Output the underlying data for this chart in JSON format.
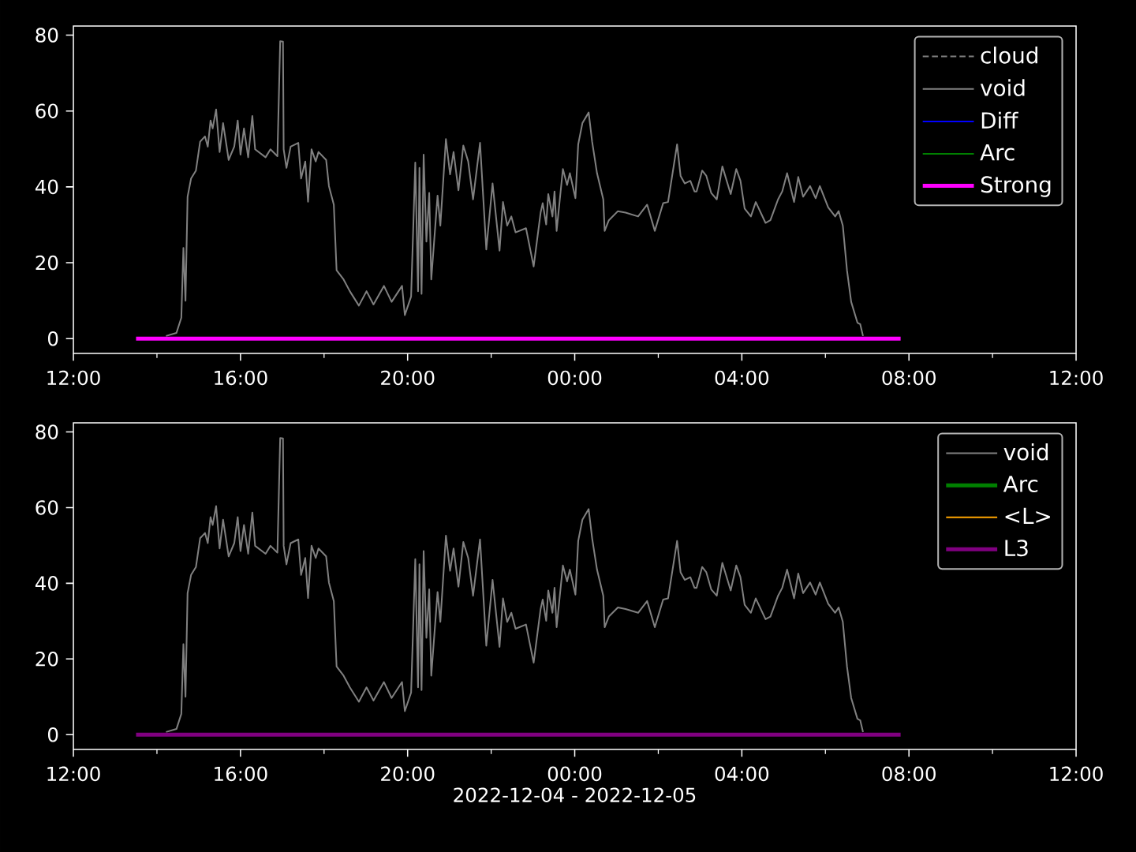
{
  "chart_data": [
    {
      "type": "line",
      "xlim": [
        "2022-12-04T12:00",
        "2022-12-05T12:00"
      ],
      "ylim": [
        -3.9,
        82.4
      ],
      "xticks": [
        {
          "value": "2022-12-04T12:00",
          "label": "12:00"
        },
        {
          "value": "2022-12-04T16:00",
          "label": "16:00"
        },
        {
          "value": "2022-12-04T20:00",
          "label": "20:00"
        },
        {
          "value": "2022-12-05T00:00",
          "label": "00:00"
        },
        {
          "value": "2022-12-05T04:00",
          "label": "04:00"
        },
        {
          "value": "2022-12-05T08:00",
          "label": "08:00"
        },
        {
          "value": "2022-12-05T12:00",
          "label": "12:00"
        }
      ],
      "yticks": [
        0,
        20,
        40,
        60,
        80
      ],
      "legend": "top right",
      "series": [
        {
          "name": "cloud",
          "color": "#808080",
          "line_style": "dashed",
          "values": [
            null
          ]
        },
        {
          "name": "void",
          "color": "#808080",
          "x": [
            "2022-12-04T14:13",
            "2022-12-04T14:28",
            "2022-12-04T14:35",
            "2022-12-04T14:38",
            "2022-12-04T14:41",
            "2022-12-04T14:44",
            "2022-12-04T14:49",
            "2022-12-04T14:56",
            "2022-12-04T15:02",
            "2022-12-04T15:09",
            "2022-12-04T15:13",
            "2022-12-04T15:17",
            "2022-12-04T15:20",
            "2022-12-04T15:25",
            "2022-12-04T15:30",
            "2022-12-04T15:35",
            "2022-12-04T15:43",
            "2022-12-04T15:51",
            "2022-12-04T15:56",
            "2022-12-04T16:00",
            "2022-12-04T16:05",
            "2022-12-04T16:11",
            "2022-12-04T16:17",
            "2022-12-04T16:21",
            "2022-12-04T16:36",
            "2022-12-04T16:43",
            "2022-12-04T16:53",
            "2022-12-04T16:57",
            "2022-12-04T17:01",
            "2022-12-04T17:02",
            "2022-12-04T17:06",
            "2022-12-04T17:12",
            "2022-12-04T17:23",
            "2022-12-04T17:27",
            "2022-12-04T17:33",
            "2022-12-04T17:37",
            "2022-12-04T17:42",
            "2022-12-04T17:48",
            "2022-12-04T17:52",
            "2022-12-04T18:03",
            "2022-12-04T18:07",
            "2022-12-04T18:14",
            "2022-12-04T18:18",
            "2022-12-04T18:28",
            "2022-12-04T18:37",
            "2022-12-04T18:50",
            "2022-12-04T19:01",
            "2022-12-04T19:11",
            "2022-12-04T19:26",
            "2022-12-04T19:37",
            "2022-12-04T19:52",
            "2022-12-04T19:56",
            "2022-12-04T20:05",
            "2022-12-04T20:11",
            "2022-12-04T20:15",
            "2022-12-04T20:17",
            "2022-12-04T20:20",
            "2022-12-04T20:23",
            "2022-12-04T20:27",
            "2022-12-04T20:31",
            "2022-12-04T20:34",
            "2022-12-04T20:43",
            "2022-12-04T20:47",
            "2022-12-04T20:55",
            "2022-12-04T21:01",
            "2022-12-04T21:06",
            "2022-12-04T21:13",
            "2022-12-04T21:20",
            "2022-12-04T21:27",
            "2022-12-04T21:34",
            "2022-12-04T21:44",
            "2022-12-04T21:53",
            "2022-12-04T22:02",
            "2022-12-04T22:12",
            "2022-12-04T22:17",
            "2022-12-04T22:23",
            "2022-12-04T22:29",
            "2022-12-04T22:35",
            "2022-12-04T22:50",
            "2022-12-04T23:01",
            "2022-12-04T23:11",
            "2022-12-04T23:14",
            "2022-12-04T23:19",
            "2022-12-04T23:22",
            "2022-12-04T23:28",
            "2022-12-04T23:31",
            "2022-12-04T23:34",
            "2022-12-04T23:43",
            "2022-12-04T23:49",
            "2022-12-04T23:53",
            "2022-12-05T00:01",
            "2022-12-05T00:05",
            "2022-12-05T00:11",
            "2022-12-05T00:20",
            "2022-12-05T00:25",
            "2022-12-05T00:32",
            "2022-12-05T00:41",
            "2022-12-05T00:43",
            "2022-12-05T00:49",
            "2022-12-05T01:02",
            "2022-12-05T01:13",
            "2022-12-05T01:31",
            "2022-12-05T01:44",
            "2022-12-05T01:55",
            "2022-12-05T02:07",
            "2022-12-05T02:14",
            "2022-12-05T02:27",
            "2022-12-05T02:32",
            "2022-12-05T02:38",
            "2022-12-05T02:46",
            "2022-12-05T02:52",
            "2022-12-05T02:55",
            "2022-12-05T03:03",
            "2022-12-05T03:09",
            "2022-12-05T03:16",
            "2022-12-05T03:24",
            "2022-12-05T03:32",
            "2022-12-05T03:44",
            "2022-12-05T03:52",
            "2022-12-05T03:58",
            "2022-12-05T04:04",
            "2022-12-05T04:13",
            "2022-12-05T04:20",
            "2022-12-05T04:34",
            "2022-12-05T04:41",
            "2022-12-05T04:52",
            "2022-12-05T04:58",
            "2022-12-05T05:05",
            "2022-12-05T05:15",
            "2022-12-05T05:21",
            "2022-12-05T05:28",
            "2022-12-05T05:38",
            "2022-12-05T05:46",
            "2022-12-05T05:52",
            "2022-12-05T06:04",
            "2022-12-05T06:14",
            "2022-12-05T06:19",
            "2022-12-05T06:25",
            "2022-12-05T06:31",
            "2022-12-05T06:37",
            "2022-12-05T06:46",
            "2022-12-05T06:50",
            "2022-12-05T06:54"
          ],
          "values": [
            0.7,
            1.5,
            5.5,
            23.9,
            10,
            37.4,
            42.2,
            44.3,
            51.9,
            53.3,
            50.6,
            57.5,
            55.4,
            60.4,
            49.2,
            56.8,
            47.1,
            50.6,
            57.5,
            48.5,
            55.4,
            47.8,
            58.7,
            49.9,
            47.8,
            49.9,
            48.1,
            78.4,
            78.3,
            49.9,
            45,
            50.6,
            51.6,
            42.2,
            46.7,
            36.1,
            49.9,
            46.7,
            49.2,
            47.1,
            40.2,
            35.3,
            18,
            15.6,
            12.5,
            8.7,
            12.5,
            9,
            13.9,
            9.7,
            13.9,
            6.2,
            11.1,
            46.4,
            12.5,
            45,
            11.8,
            48.5,
            25.6,
            38.4,
            15.6,
            37.7,
            29.8,
            52.6,
            43.3,
            49.2,
            39.1,
            50.9,
            46.7,
            36.7,
            51.6,
            23.5,
            40.9,
            23.2,
            36,
            29.8,
            32.2,
            28,
            29.1,
            19,
            33.2,
            35.7,
            30.1,
            38.1,
            32.2,
            38.8,
            28.4,
            44.7,
            40.5,
            43.6,
            37,
            51.2,
            56.8,
            59.6,
            51.9,
            43.6,
            36.7,
            28.4,
            31.2,
            33.6,
            33.2,
            32.2,
            35.3,
            28.4,
            35.7,
            36,
            51.2,
            42.9,
            40.9,
            41.6,
            38.8,
            38.8,
            44.3,
            42.9,
            38.4,
            36.7,
            45.4,
            38.1,
            44.7,
            41.6,
            34.3,
            32.2,
            36,
            30.5,
            31.2,
            36.7,
            38.8,
            43.6,
            36,
            42.6,
            37.4,
            40.2,
            37,
            40.2,
            34.6,
            32.2,
            33.6,
            29.8,
            18,
            9.7,
            4.2,
            3.8,
            0.7
          ]
        },
        {
          "name": "Diff",
          "color": "#0000ff",
          "values": [
            null
          ]
        },
        {
          "name": "Arc",
          "color": "#008000",
          "values": [
            null
          ]
        },
        {
          "name": "Strong",
          "color": "#ff00ff",
          "x": [
            "2022-12-04T13:30",
            "2022-12-05T07:48"
          ],
          "values": [
            0,
            0
          ]
        }
      ]
    },
    {
      "type": "line",
      "xlim": [
        "2022-12-04T12:00",
        "2022-12-05T12:00"
      ],
      "ylim": [
        -3.9,
        82.4
      ],
      "xlabel": "2022-12-04 - 2022-12-05",
      "xticks": [
        {
          "value": "2022-12-04T12:00",
          "label": "12:00"
        },
        {
          "value": "2022-12-04T16:00",
          "label": "16:00"
        },
        {
          "value": "2022-12-04T20:00",
          "label": "20:00"
        },
        {
          "value": "2022-12-05T00:00",
          "label": "00:00"
        },
        {
          "value": "2022-12-05T04:00",
          "label": "04:00"
        },
        {
          "value": "2022-12-05T08:00",
          "label": "08:00"
        },
        {
          "value": "2022-12-05T12:00",
          "label": "12:00"
        }
      ],
      "yticks": [
        0,
        20,
        40,
        60,
        80
      ],
      "legend": "top right",
      "series": [
        {
          "name": "void",
          "color": "#808080",
          "x": [
            "2022-12-04T14:13",
            "2022-12-04T14:28",
            "2022-12-04T14:35",
            "2022-12-04T14:38",
            "2022-12-04T14:41",
            "2022-12-04T14:44",
            "2022-12-04T14:49",
            "2022-12-04T14:56",
            "2022-12-04T15:02",
            "2022-12-04T15:09",
            "2022-12-04T15:13",
            "2022-12-04T15:17",
            "2022-12-04T15:20",
            "2022-12-04T15:25",
            "2022-12-04T15:30",
            "2022-12-04T15:35",
            "2022-12-04T15:43",
            "2022-12-04T15:51",
            "2022-12-04T15:56",
            "2022-12-04T16:00",
            "2022-12-04T16:05",
            "2022-12-04T16:11",
            "2022-12-04T16:17",
            "2022-12-04T16:21",
            "2022-12-04T16:36",
            "2022-12-04T16:43",
            "2022-12-04T16:53",
            "2022-12-04T16:57",
            "2022-12-04T17:01",
            "2022-12-04T17:02",
            "2022-12-04T17:06",
            "2022-12-04T17:12",
            "2022-12-04T17:23",
            "2022-12-04T17:27",
            "2022-12-04T17:33",
            "2022-12-04T17:37",
            "2022-12-04T17:42",
            "2022-12-04T17:48",
            "2022-12-04T17:52",
            "2022-12-04T18:03",
            "2022-12-04T18:07",
            "2022-12-04T18:14",
            "2022-12-04T18:18",
            "2022-12-04T18:28",
            "2022-12-04T18:37",
            "2022-12-04T18:50",
            "2022-12-04T19:01",
            "2022-12-04T19:11",
            "2022-12-04T19:26",
            "2022-12-04T19:37",
            "2022-12-04T19:52",
            "2022-12-04T19:56",
            "2022-12-04T20:05",
            "2022-12-04T20:11",
            "2022-12-04T20:15",
            "2022-12-04T20:17",
            "2022-12-04T20:20",
            "2022-12-04T20:23",
            "2022-12-04T20:27",
            "2022-12-04T20:31",
            "2022-12-04T20:34",
            "2022-12-04T20:43",
            "2022-12-04T20:47",
            "2022-12-04T20:55",
            "2022-12-04T21:01",
            "2022-12-04T21:06",
            "2022-12-04T21:13",
            "2022-12-04T21:20",
            "2022-12-04T21:27",
            "2022-12-04T21:34",
            "2022-12-04T21:44",
            "2022-12-04T21:53",
            "2022-12-04T22:02",
            "2022-12-04T22:12",
            "2022-12-04T22:17",
            "2022-12-04T22:23",
            "2022-12-04T22:29",
            "2022-12-04T22:35",
            "2022-12-04T22:50",
            "2022-12-04T23:01",
            "2022-12-04T23:11",
            "2022-12-04T23:14",
            "2022-12-04T23:19",
            "2022-12-04T23:22",
            "2022-12-04T23:28",
            "2022-12-04T23:31",
            "2022-12-04T23:34",
            "2022-12-04T23:43",
            "2022-12-04T23:49",
            "2022-12-04T23:53",
            "2022-12-05T00:01",
            "2022-12-05T00:05",
            "2022-12-05T00:11",
            "2022-12-05T00:20",
            "2022-12-05T00:25",
            "2022-12-05T00:32",
            "2022-12-05T00:41",
            "2022-12-05T00:43",
            "2022-12-05T00:49",
            "2022-12-05T01:02",
            "2022-12-05T01:13",
            "2022-12-05T01:31",
            "2022-12-05T01:44",
            "2022-12-05T01:55",
            "2022-12-05T02:07",
            "2022-12-05T02:14",
            "2022-12-05T02:27",
            "2022-12-05T02:32",
            "2022-12-05T02:38",
            "2022-12-05T02:46",
            "2022-12-05T02:52",
            "2022-12-05T02:55",
            "2022-12-05T03:03",
            "2022-12-05T03:09",
            "2022-12-05T03:16",
            "2022-12-05T03:24",
            "2022-12-05T03:32",
            "2022-12-05T03:44",
            "2022-12-05T03:52",
            "2022-12-05T03:58",
            "2022-12-05T04:04",
            "2022-12-05T04:13",
            "2022-12-05T04:20",
            "2022-12-05T04:34",
            "2022-12-05T04:41",
            "2022-12-05T04:52",
            "2022-12-05T04:58",
            "2022-12-05T05:05",
            "2022-12-05T05:15",
            "2022-12-05T05:21",
            "2022-12-05T05:28",
            "2022-12-05T05:38",
            "2022-12-05T05:46",
            "2022-12-05T05:52",
            "2022-12-05T06:04",
            "2022-12-05T06:14",
            "2022-12-05T06:19",
            "2022-12-05T06:25",
            "2022-12-05T06:31",
            "2022-12-05T06:37",
            "2022-12-05T06:46",
            "2022-12-05T06:50",
            "2022-12-05T06:54"
          ],
          "values": [
            0.7,
            1.5,
            5.5,
            23.9,
            10,
            37.4,
            42.2,
            44.3,
            51.9,
            53.3,
            50.6,
            57.5,
            55.4,
            60.4,
            49.2,
            56.8,
            47.1,
            50.6,
            57.5,
            48.5,
            55.4,
            47.8,
            58.7,
            49.9,
            47.8,
            49.9,
            48.1,
            78.4,
            78.3,
            49.9,
            45,
            50.6,
            51.6,
            42.2,
            46.7,
            36.1,
            49.9,
            46.7,
            49.2,
            47.1,
            40.2,
            35.3,
            18,
            15.6,
            12.5,
            8.7,
            12.5,
            9,
            13.9,
            9.7,
            13.9,
            6.2,
            11.1,
            46.4,
            12.5,
            45,
            11.8,
            48.5,
            25.6,
            38.4,
            15.6,
            37.7,
            29.8,
            52.6,
            43.3,
            49.2,
            39.1,
            50.9,
            46.7,
            36.7,
            51.6,
            23.5,
            40.9,
            23.2,
            36,
            29.8,
            32.2,
            28,
            29.1,
            19,
            33.2,
            35.7,
            30.1,
            38.1,
            32.2,
            38.8,
            28.4,
            44.7,
            40.5,
            43.6,
            37,
            51.2,
            56.8,
            59.6,
            51.9,
            43.6,
            36.7,
            28.4,
            31.2,
            33.6,
            33.2,
            32.2,
            35.3,
            28.4,
            35.7,
            36,
            51.2,
            42.9,
            40.9,
            41.6,
            38.8,
            38.8,
            44.3,
            42.9,
            38.4,
            36.7,
            45.4,
            38.1,
            44.7,
            41.6,
            34.3,
            32.2,
            36,
            30.5,
            31.2,
            36.7,
            38.8,
            43.6,
            36,
            42.6,
            37.4,
            40.2,
            37,
            40.2,
            34.6,
            32.2,
            33.6,
            29.8,
            18,
            9.7,
            4.2,
            3.8,
            0.7
          ]
        },
        {
          "name": "Arc",
          "color": "#008000",
          "values": [
            null
          ]
        },
        {
          "name": "<L>",
          "color": "#ffa500",
          "values": [
            null
          ]
        },
        {
          "name": "L3",
          "color": "#800080",
          "x": [
            "2022-12-04T13:30",
            "2022-12-05T07:48"
          ],
          "values": [
            0,
            0
          ]
        }
      ]
    }
  ]
}
